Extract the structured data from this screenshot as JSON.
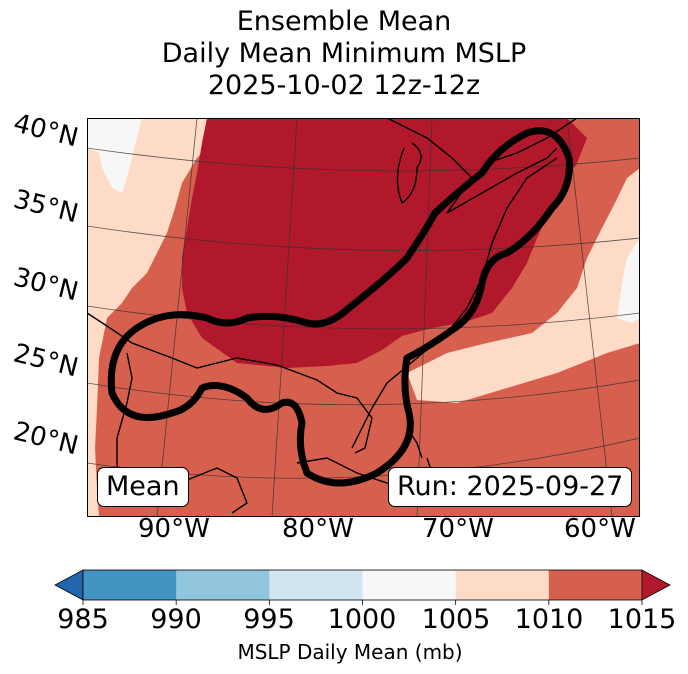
{
  "title": {
    "line1": "Ensemble Mean",
    "line2": "Daily Mean Minimum MSLP",
    "line3": "2025-10-02 12z-12z"
  },
  "map": {
    "projection": "conic",
    "lat_labels": [
      "40°N",
      "35°N",
      "30°N",
      "25°N",
      "20°N"
    ],
    "lon_labels": [
      "90°W",
      "80°W",
      "70°W",
      "60°W"
    ],
    "annotation_left": "Mean",
    "annotation_right": "Run: 2025-09-27",
    "colors": {
      "lt_985": "#2166ac",
      "985_990": "#4393c3",
      "990_995": "#92c5de",
      "995_1000": "#d1e5f0",
      "1000_1005": "#f7f7f7",
      "1005_1010": "#fddbc7",
      "1010_1015": "#d6604d",
      "gt_1015": "#b2182b",
      "contour": "#000000",
      "coastline": "#000000",
      "gridline": "#333333"
    },
    "fields": [
      {
        "region": "northeast-us-and-great-lakes",
        "band": "gt_1015"
      },
      {
        "region": "gulf-of-mexico-and-caribbean",
        "band": "1010_1015"
      },
      {
        "region": "atlantic-band",
        "band": "1005_1010"
      },
      {
        "region": "far-west-and-northwest",
        "band": "1005_1010"
      },
      {
        "region": "north-west-corner",
        "band": "1000_1005"
      },
      {
        "region": "east-edge",
        "band": "1000_1005"
      }
    ]
  },
  "colorbar": {
    "ticks": [
      "985",
      "990",
      "995",
      "1000",
      "1005",
      "1010",
      "1015"
    ],
    "label": "MSLP Daily Mean (mb)",
    "bands": [
      "#4393c3",
      "#92c5de",
      "#d1e5f0",
      "#f7f7f7",
      "#fddbc7",
      "#d6604d"
    ],
    "extend_min_color": "#2166ac",
    "extend_max_color": "#b2182b"
  }
}
